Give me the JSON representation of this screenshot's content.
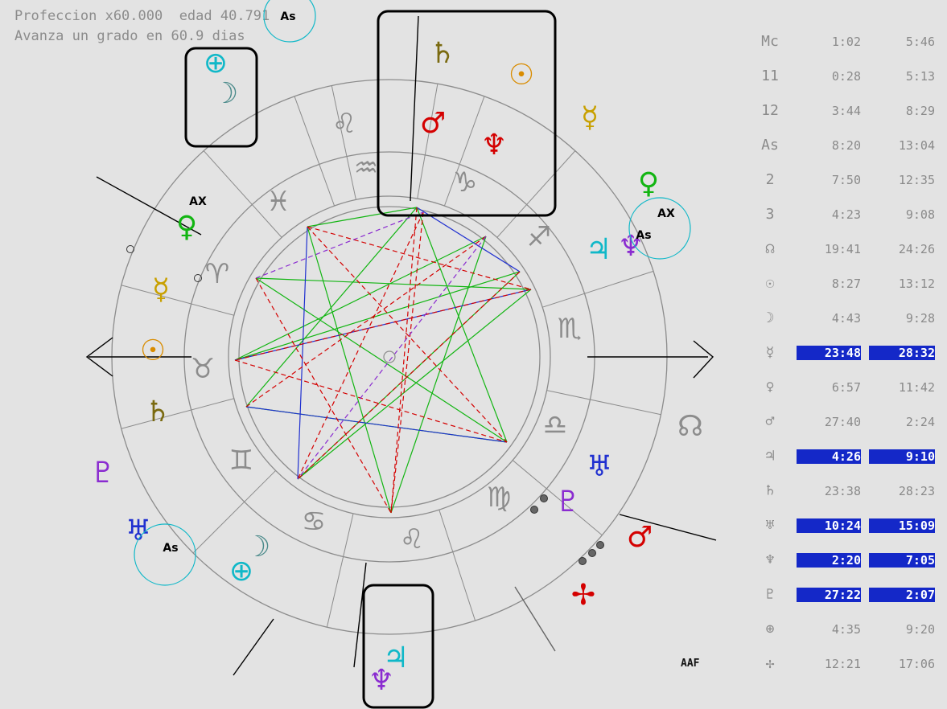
{
  "header": {
    "line1": "Profeccion x60.000  edad 40.791",
    "line2": "Avanza un grado en 60.9 dias"
  },
  "colors": {
    "background": "#e3e3e3",
    "gray": "#8c8c8c",
    "highlight": "#1428c8",
    "green": "#12b512",
    "red": "#d40000",
    "blue": "#2030d0",
    "purple": "#8a2bd0",
    "cyan": "#10b8c8",
    "orange": "#d98c00",
    "olive": "#7a6a10",
    "gold": "#c8a000"
  },
  "wheel": {
    "signs": [
      {
        "name": "leo",
        "glyph": "♌"
      },
      {
        "name": "aquarius",
        "glyph": "♒"
      },
      {
        "name": "capricorn",
        "glyph": "♑"
      },
      {
        "name": "sagittarius",
        "glyph": "♐"
      },
      {
        "name": "scorpio",
        "glyph": "♏"
      },
      {
        "name": "libra",
        "glyph": "♎"
      },
      {
        "name": "virgo",
        "glyph": "♍"
      },
      {
        "name": "leo-lower",
        "glyph": "♌"
      },
      {
        "name": "cancer",
        "glyph": "♋"
      },
      {
        "name": "gemini",
        "glyph": "♊"
      },
      {
        "name": "taurus",
        "glyph": "♉"
      },
      {
        "name": "aries",
        "glyph": "♈"
      },
      {
        "name": "pisces",
        "glyph": "♓"
      }
    ],
    "planets": [
      {
        "name": "saturn-top",
        "glyph": "♄"
      },
      {
        "name": "sun-top",
        "glyph": "☉"
      },
      {
        "name": "mars-top",
        "glyph": "♂"
      },
      {
        "name": "neptune-cross-top",
        "glyph": "♆"
      },
      {
        "name": "mercury-right",
        "glyph": "☿"
      },
      {
        "name": "venus-right",
        "glyph": "♀"
      },
      {
        "name": "jupiter-right",
        "glyph": "♃"
      },
      {
        "name": "neptune-right",
        "glyph": "♆"
      },
      {
        "name": "uranus-right",
        "glyph": "♅"
      },
      {
        "name": "pluto-right",
        "glyph": "♇"
      },
      {
        "name": "mars-right",
        "glyph": "♂"
      },
      {
        "name": "cross-right",
        "glyph": "✢"
      },
      {
        "name": "north-node-right",
        "glyph": "☊"
      },
      {
        "name": "earth-topleft",
        "glyph": "⊕"
      },
      {
        "name": "moon-topleft",
        "glyph": "☽"
      },
      {
        "name": "venus-left",
        "glyph": "♀"
      },
      {
        "name": "mercury-left",
        "glyph": "☿"
      },
      {
        "name": "sun-left",
        "glyph": "☉"
      },
      {
        "name": "saturn-left",
        "glyph": "♄"
      },
      {
        "name": "pluto-left",
        "glyph": "♇"
      },
      {
        "name": "uranus-left",
        "glyph": "♅"
      },
      {
        "name": "moon-bottom",
        "glyph": "☽"
      },
      {
        "name": "earth-bottom",
        "glyph": "⊕"
      },
      {
        "name": "jupiter-bottom",
        "glyph": "♃"
      },
      {
        "name": "neptune-bottom",
        "glyph": "♆"
      }
    ],
    "labels": {
      "ax_left": "AX",
      "ax_right": "AX",
      "as_right": "As",
      "as_left": "As",
      "as_top": "As"
    }
  },
  "table": {
    "rows": [
      {
        "label": "Mc",
        "t1": "1:02",
        "t2": "5:46",
        "hl": false
      },
      {
        "label": "11",
        "t1": "0:28",
        "t2": "5:13",
        "hl": false
      },
      {
        "label": "12",
        "t1": "3:44",
        "t2": "8:29",
        "hl": false
      },
      {
        "label": "As",
        "t1": "8:20",
        "t2": "13:04",
        "hl": false
      },
      {
        "label": "2",
        "t1": "7:50",
        "t2": "12:35",
        "hl": false
      },
      {
        "label": "3",
        "t1": "4:23",
        "t2": "9:08",
        "hl": false
      },
      {
        "label": "☊",
        "t1": "19:41",
        "t2": "24:26",
        "hl": false
      },
      {
        "label": "☉",
        "t1": "8:27",
        "t2": "13:12",
        "hl": false
      },
      {
        "label": "☽",
        "t1": "4:43",
        "t2": "9:28",
        "hl": false
      },
      {
        "label": "☿",
        "t1": "23:48",
        "t2": "28:32",
        "hl": true
      },
      {
        "label": "♀",
        "t1": "6:57",
        "t2": "11:42",
        "hl": false
      },
      {
        "label": "♂",
        "t1": "27:40",
        "t2": "2:24",
        "hl": false
      },
      {
        "label": "♃",
        "t1": "4:26",
        "t2": "9:10",
        "hl": true
      },
      {
        "label": "♄",
        "t1": "23:38",
        "t2": "28:23",
        "hl": false
      },
      {
        "label": "♅",
        "t1": "10:24",
        "t2": "15:09",
        "hl": true
      },
      {
        "label": "♆",
        "t1": "2:20",
        "t2": "7:05",
        "hl": true
      },
      {
        "label": "♇",
        "t1": "27:22",
        "t2": "2:07",
        "hl": true
      },
      {
        "label": "⊕",
        "t1": "4:35",
        "t2": "9:20",
        "hl": false
      },
      {
        "label": "✢",
        "t1": "12:21",
        "t2": "17:06",
        "hl": false
      }
    ]
  },
  "signature": "AAF"
}
